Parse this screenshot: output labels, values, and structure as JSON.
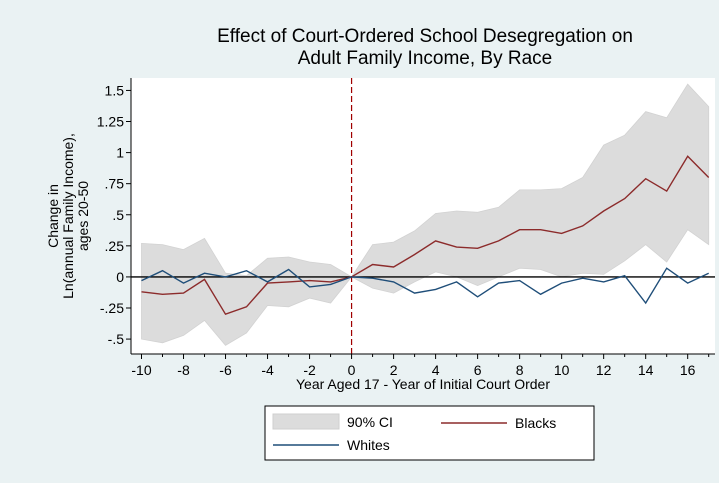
{
  "chart_data": {
    "type": "line",
    "title": "Effect of Court-Ordered School Desegregation on",
    "subtitle": "Adult Family Income, By Race",
    "xlabel": "Year Aged 17 - Year of Initial Court Order",
    "ylabel_lines": [
      "Change in",
      "Ln(annual Family Income),",
      "ages 20-50"
    ],
    "xlim": [
      -10.5,
      17.3
    ],
    "ylim": [
      -0.62,
      1.6
    ],
    "x_ticks": [
      -10,
      -8,
      -6,
      -4,
      -2,
      0,
      2,
      4,
      6,
      8,
      10,
      12,
      14,
      16
    ],
    "x_tick_labels": [
      "-10",
      "-8",
      "-6",
      "-4",
      "-2",
      "0",
      "2",
      "4",
      "6",
      "8",
      "10",
      "12",
      "14",
      "16"
    ],
    "y_ticks": [
      1.5,
      1.25,
      1,
      0.75,
      0.5,
      0.25,
      0,
      -0.25,
      -0.5
    ],
    "y_tick_labels": [
      "1.5",
      "1.25",
      "1",
      ".75",
      ".5",
      ".25",
      "0",
      "-.25",
      "-.5"
    ],
    "reference_line_x": 0,
    "legend": {
      "placement": "bottom"
    },
    "x": [
      -10,
      -9,
      -8,
      -7,
      -6,
      -5,
      -4,
      -3,
      -2,
      -1,
      0,
      1,
      2,
      3,
      4,
      5,
      6,
      7,
      8,
      9,
      10,
      11,
      12,
      13,
      14,
      15,
      16,
      17
    ],
    "series": [
      {
        "name": "Blacks",
        "color": "#8c2b2b",
        "values": [
          -0.12,
          -0.14,
          -0.13,
          -0.02,
          -0.3,
          -0.24,
          -0.05,
          -0.04,
          -0.03,
          -0.04,
          0.0,
          0.1,
          0.08,
          0.18,
          0.29,
          0.24,
          0.23,
          0.29,
          0.38,
          0.38,
          0.35,
          0.41,
          0.53,
          0.63,
          0.79,
          0.69,
          0.97,
          0.8
        ]
      },
      {
        "name": "Whites",
        "color": "#1f4e79",
        "values": [
          -0.03,
          0.05,
          -0.05,
          0.03,
          0.0,
          0.05,
          -0.04,
          0.06,
          -0.08,
          -0.06,
          0.0,
          -0.01,
          -0.04,
          -0.13,
          -0.1,
          -0.04,
          -0.16,
          -0.05,
          -0.03,
          -0.14,
          -0.05,
          -0.01,
          -0.04,
          0.01,
          -0.21,
          0.07,
          -0.05,
          0.03
        ]
      }
    ],
    "ci": {
      "name": "90% CI",
      "color": "#dcdcdc",
      "upper": [
        0.27,
        0.26,
        0.22,
        0.31,
        0.03,
        0.01,
        0.15,
        0.16,
        0.12,
        0.1,
        0.0,
        0.26,
        0.28,
        0.37,
        0.51,
        0.53,
        0.52,
        0.56,
        0.7,
        0.7,
        0.71,
        0.8,
        1.06,
        1.14,
        1.33,
        1.28,
        1.55,
        1.37
      ],
      "lower": [
        -0.5,
        -0.53,
        -0.47,
        -0.35,
        -0.55,
        -0.45,
        -0.23,
        -0.24,
        -0.17,
        -0.21,
        0.0,
        -0.09,
        -0.13,
        -0.04,
        0.04,
        0.0,
        -0.07,
        0.0,
        0.07,
        0.06,
        0.0,
        0.03,
        0.02,
        0.13,
        0.26,
        0.12,
        0.38,
        0.26
      ]
    },
    "grid": false,
    "colors": {
      "background": "#eaf2f3",
      "plot_background": "#ffffff",
      "refline": "#a00000",
      "zero_line": "#000000"
    }
  }
}
